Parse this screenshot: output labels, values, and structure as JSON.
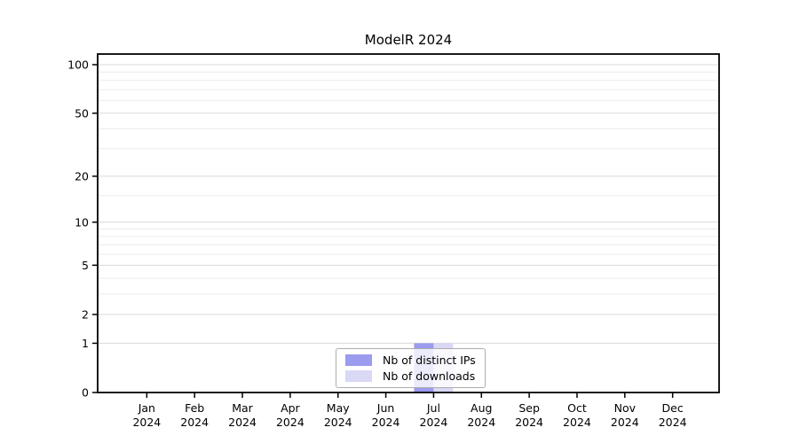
{
  "figure": {
    "background": "#ffffff"
  },
  "chart_data": {
    "type": "bar",
    "title": "ModelR 2024",
    "x": {
      "categories": [
        "Jan",
        "Feb",
        "Mar",
        "Apr",
        "May",
        "Jun",
        "Jul",
        "Aug",
        "Sep",
        "Oct",
        "Nov",
        "Dec"
      ],
      "year": "2024"
    },
    "y_axis": {
      "scale": "log1p",
      "range": [
        0,
        100
      ],
      "major_ticks": [
        0,
        1,
        2,
        5,
        10,
        20,
        50,
        100
      ],
      "minor_gridlines": [
        3,
        4,
        6,
        7,
        8,
        9,
        15,
        30,
        40,
        60,
        70,
        80,
        90
      ]
    },
    "series": [
      {
        "name": "Nb of distinct IPs",
        "color": "#9b9bef",
        "values": [
          0,
          0,
          0,
          0,
          0,
          0,
          1,
          0,
          0,
          0,
          0,
          0
        ]
      },
      {
        "name": "Nb of downloads",
        "color": "#d9d9f6",
        "values": [
          0,
          0,
          0,
          0,
          0,
          0,
          1,
          0,
          0,
          0,
          0,
          0
        ]
      }
    ],
    "legend": {
      "position": "inside-bottom-center"
    },
    "grid": {
      "major_color": "#d9d9d9",
      "minor_color": "#ececec"
    },
    "axis_color": "#000000",
    "text_color": "#000000"
  }
}
